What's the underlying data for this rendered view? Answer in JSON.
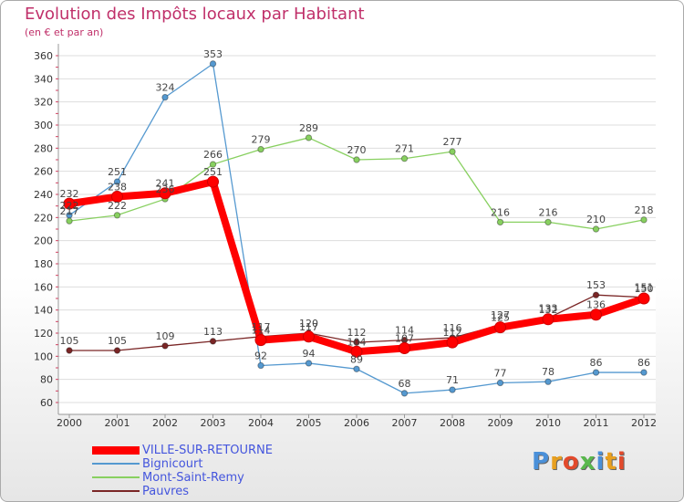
{
  "chart_data": {
    "type": "line",
    "title": "Evolution des Impôts locaux par Habitant",
    "subtitle": "(en € et par an)",
    "xlabel": "",
    "ylabel": "",
    "ylim": [
      60,
      360
    ],
    "yticks": [
      60,
      80,
      100,
      120,
      140,
      160,
      180,
      200,
      220,
      240,
      260,
      280,
      300,
      320,
      340,
      360
    ],
    "categories": [
      "2000",
      "2001",
      "2002",
      "2003",
      "2004",
      "2005",
      "2006",
      "2007",
      "2008",
      "2009",
      "2010",
      "2011",
      "2012"
    ],
    "grid": "horizontal",
    "legend_position": "bottom-left",
    "series": [
      {
        "name": "VILLE-SUR-RETOURNE",
        "color": "#ff0000",
        "values": [
          232,
          238,
          241,
          251,
          114,
          117,
          104,
          107,
          112,
          125,
          132,
          136,
          150
        ]
      },
      {
        "name": "Bignicourt",
        "color": "#5599d0",
        "values": [
          222,
          251,
          324,
          353,
          92,
          94,
          89,
          68,
          71,
          77,
          78,
          86,
          86
        ]
      },
      {
        "name": "Mont-Saint-Remy",
        "color": "#88d060",
        "values": [
          217,
          222,
          236,
          266,
          279,
          289,
          270,
          271,
          277,
          216,
          216,
          210,
          218
        ]
      },
      {
        "name": "Pauvres",
        "color": "#7a2626",
        "values": [
          105,
          105,
          109,
          113,
          117,
          120,
          112,
          114,
          116,
          127,
          133,
          153,
          151
        ]
      }
    ]
  },
  "logo": {
    "text": "Proxiti",
    "colors": [
      "#4a90d9",
      "#e8a020",
      "#e24a2c",
      "#59b84d"
    ]
  }
}
